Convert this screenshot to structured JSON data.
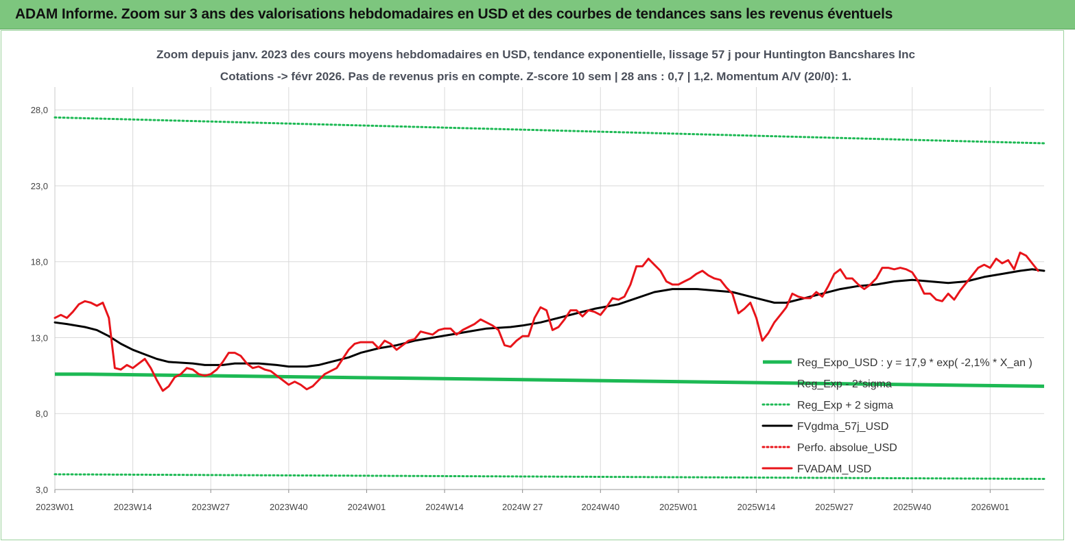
{
  "banner": {
    "title": "ADAM Informe. Zoom sur 3 ans des valorisations hebdomadaires en USD et des courbes de tendances sans les revenus éventuels"
  },
  "colors": {
    "banner_bg": "#7dc67e",
    "green": "#1db954",
    "black": "#000000",
    "red": "#e8141a",
    "grid": "#d9d9d9"
  },
  "chart_data": {
    "type": "line",
    "title": "Zoom depuis janv. 2023 des cours moyens hebdomadaires en USD, tendance exponentielle, lissage 57 j pour Huntington Bancshares Inc",
    "subtitle": "Cotations -> févr 2026. Pas de revenus pris en compte. Z-score 10 sem | 28 ans : 0,7 | 1,2. Momentum A/V (20/0): 1.",
    "xlabel": "",
    "ylabel": "",
    "x_range": [
      1,
      166
    ],
    "ylim": [
      3,
      29.5
    ],
    "y_ticks": [
      3.0,
      8.0,
      13.0,
      18.0,
      23.0,
      28.0
    ],
    "y_tick_labels": [
      "3,0",
      "8,0",
      "13,0",
      "18,0",
      "23,0",
      "28,0"
    ],
    "x_ticks": [
      {
        "label": "2023W01",
        "index": 1
      },
      {
        "label": "2023W14",
        "index": 14
      },
      {
        "label": "2023W27",
        "index": 27
      },
      {
        "label": "2023W40",
        "index": 40
      },
      {
        "label": "2024W01",
        "index": 53
      },
      {
        "label": "2024W14",
        "index": 66
      },
      {
        "label": "2024W 27",
        "index": 79
      },
      {
        "label": "2024W40",
        "index": 92
      },
      {
        "label": "2025W01",
        "index": 105
      },
      {
        "label": "2025W14",
        "index": 118
      },
      {
        "label": "2025W27",
        "index": 131
      },
      {
        "label": "2025W40",
        "index": 144
      },
      {
        "label": "2026W01",
        "index": 157
      }
    ],
    "grid": true,
    "legend_position": "bottom-right",
    "series": [
      {
        "name": "Reg_Expo_USD : y = 17,9 * exp( -2,1% *  X_an )",
        "color": "#1db954",
        "style": "solid",
        "points": [
          [
            1,
            10.6
          ],
          [
            6,
            10.6
          ],
          [
            166,
            9.8
          ]
        ]
      },
      {
        "name": "Reg_Exp - 2*sigma",
        "color": "#1db954",
        "style": "dotted",
        "points": [
          [
            1,
            4.0
          ],
          [
            166,
            3.7
          ]
        ]
      },
      {
        "name": "Reg_Exp + 2 sigma",
        "color": "#1db954",
        "style": "dotted",
        "points": [
          [
            1,
            27.5
          ],
          [
            166,
            25.8
          ]
        ]
      },
      {
        "name": "FVgdma_57j_USD",
        "color": "#000000",
        "style": "solid",
        "points": [
          [
            1,
            14.0
          ],
          [
            3,
            13.9
          ],
          [
            6,
            13.7
          ],
          [
            8,
            13.5
          ],
          [
            10,
            13.1
          ],
          [
            12,
            12.6
          ],
          [
            14,
            12.2
          ],
          [
            16,
            11.9
          ],
          [
            18,
            11.6
          ],
          [
            20,
            11.4
          ],
          [
            24,
            11.3
          ],
          [
            26,
            11.2
          ],
          [
            29,
            11.2
          ],
          [
            31,
            11.3
          ],
          [
            35,
            11.3
          ],
          [
            38,
            11.2
          ],
          [
            40,
            11.1
          ],
          [
            43,
            11.1
          ],
          [
            45,
            11.2
          ],
          [
            47,
            11.4
          ],
          [
            50,
            11.7
          ],
          [
            52,
            12.0
          ],
          [
            55,
            12.3
          ],
          [
            58,
            12.5
          ],
          [
            61,
            12.8
          ],
          [
            64,
            13.0
          ],
          [
            67,
            13.2
          ],
          [
            70,
            13.4
          ],
          [
            73,
            13.6
          ],
          [
            77,
            13.7
          ],
          [
            79,
            13.8
          ],
          [
            82,
            14.0
          ],
          [
            85,
            14.3
          ],
          [
            88,
            14.6
          ],
          [
            91,
            14.9
          ],
          [
            95,
            15.2
          ],
          [
            98,
            15.6
          ],
          [
            101,
            16.0
          ],
          [
            104,
            16.2
          ],
          [
            108,
            16.2
          ],
          [
            111,
            16.1
          ],
          [
            114,
            16.0
          ],
          [
            117,
            15.7
          ],
          [
            119,
            15.5
          ],
          [
            121,
            15.3
          ],
          [
            123,
            15.3
          ],
          [
            126,
            15.6
          ],
          [
            129,
            15.9
          ],
          [
            132,
            16.2
          ],
          [
            135,
            16.4
          ],
          [
            138,
            16.5
          ],
          [
            141,
            16.7
          ],
          [
            144,
            16.8
          ],
          [
            147,
            16.7
          ],
          [
            150,
            16.6
          ],
          [
            153,
            16.7
          ],
          [
            156,
            17.0
          ],
          [
            159,
            17.2
          ],
          [
            162,
            17.4
          ],
          [
            164,
            17.5
          ],
          [
            166,
            17.4
          ]
        ]
      },
      {
        "name": "Perfo. absolue_USD",
        "color": "#e8141a",
        "style": "dotted",
        "points": []
      },
      {
        "name": "FVADAM_USD",
        "color": "#e8141a",
        "style": "solid",
        "points": [
          [
            1,
            14.3
          ],
          [
            2,
            14.5
          ],
          [
            3,
            14.3
          ],
          [
            4,
            14.7
          ],
          [
            5,
            15.2
          ],
          [
            6,
            15.4
          ],
          [
            7,
            15.3
          ],
          [
            8,
            15.1
          ],
          [
            9,
            15.3
          ],
          [
            10,
            14.3
          ],
          [
            11,
            11.0
          ],
          [
            12,
            10.9
          ],
          [
            13,
            11.2
          ],
          [
            14,
            11.0
          ],
          [
            15,
            11.3
          ],
          [
            16,
            11.6
          ],
          [
            17,
            11.0
          ],
          [
            18,
            10.2
          ],
          [
            19,
            9.5
          ],
          [
            20,
            9.8
          ],
          [
            21,
            10.4
          ],
          [
            22,
            10.6
          ],
          [
            23,
            11.0
          ],
          [
            24,
            10.9
          ],
          [
            25,
            10.6
          ],
          [
            26,
            10.5
          ],
          [
            27,
            10.6
          ],
          [
            28,
            10.9
          ],
          [
            29,
            11.4
          ],
          [
            30,
            12.0
          ],
          [
            31,
            12.0
          ],
          [
            32,
            11.8
          ],
          [
            33,
            11.3
          ],
          [
            34,
            11.0
          ],
          [
            35,
            11.1
          ],
          [
            36,
            10.9
          ],
          [
            37,
            10.8
          ],
          [
            38,
            10.5
          ],
          [
            39,
            10.2
          ],
          [
            40,
            9.9
          ],
          [
            41,
            10.1
          ],
          [
            42,
            9.9
          ],
          [
            43,
            9.6
          ],
          [
            44,
            9.8
          ],
          [
            45,
            10.2
          ],
          [
            46,
            10.6
          ],
          [
            47,
            10.8
          ],
          [
            48,
            11.0
          ],
          [
            49,
            11.6
          ],
          [
            50,
            12.2
          ],
          [
            51,
            12.6
          ],
          [
            52,
            12.7
          ],
          [
            53,
            12.7
          ],
          [
            54,
            12.7
          ],
          [
            55,
            12.3
          ],
          [
            56,
            12.8
          ],
          [
            57,
            12.6
          ],
          [
            58,
            12.2
          ],
          [
            59,
            12.5
          ],
          [
            60,
            12.8
          ],
          [
            61,
            12.9
          ],
          [
            62,
            13.4
          ],
          [
            63,
            13.3
          ],
          [
            64,
            13.2
          ],
          [
            65,
            13.5
          ],
          [
            66,
            13.6
          ],
          [
            67,
            13.6
          ],
          [
            68,
            13.2
          ],
          [
            69,
            13.5
          ],
          [
            70,
            13.7
          ],
          [
            71,
            13.9
          ],
          [
            72,
            14.2
          ],
          [
            73,
            14.0
          ],
          [
            74,
            13.8
          ],
          [
            75,
            13.5
          ],
          [
            76,
            12.5
          ],
          [
            77,
            12.4
          ],
          [
            78,
            12.8
          ],
          [
            79,
            13.1
          ],
          [
            80,
            13.1
          ],
          [
            81,
            14.3
          ],
          [
            82,
            15.0
          ],
          [
            83,
            14.8
          ],
          [
            84,
            13.5
          ],
          [
            85,
            13.7
          ],
          [
            86,
            14.2
          ],
          [
            87,
            14.8
          ],
          [
            88,
            14.8
          ],
          [
            89,
            14.4
          ],
          [
            90,
            14.8
          ],
          [
            91,
            14.7
          ],
          [
            92,
            14.5
          ],
          [
            93,
            15.0
          ],
          [
            94,
            15.6
          ],
          [
            95,
            15.5
          ],
          [
            96,
            15.7
          ],
          [
            97,
            16.5
          ],
          [
            98,
            17.7
          ],
          [
            99,
            17.7
          ],
          [
            100,
            18.2
          ],
          [
            101,
            17.8
          ],
          [
            102,
            17.4
          ],
          [
            103,
            16.7
          ],
          [
            104,
            16.5
          ],
          [
            105,
            16.5
          ],
          [
            106,
            16.7
          ],
          [
            107,
            16.9
          ],
          [
            108,
            17.2
          ],
          [
            109,
            17.4
          ],
          [
            110,
            17.1
          ],
          [
            111,
            16.9
          ],
          [
            112,
            16.8
          ],
          [
            113,
            16.3
          ],
          [
            114,
            15.9
          ],
          [
            115,
            14.6
          ],
          [
            116,
            14.9
          ],
          [
            117,
            15.3
          ],
          [
            118,
            14.3
          ],
          [
            119,
            12.8
          ],
          [
            120,
            13.3
          ],
          [
            121,
            14.0
          ],
          [
            122,
            14.5
          ],
          [
            123,
            15.0
          ],
          [
            124,
            15.9
          ],
          [
            125,
            15.7
          ],
          [
            126,
            15.6
          ],
          [
            127,
            15.6
          ],
          [
            128,
            16.0
          ],
          [
            129,
            15.7
          ],
          [
            130,
            16.4
          ],
          [
            131,
            17.2
          ],
          [
            132,
            17.5
          ],
          [
            133,
            16.9
          ],
          [
            134,
            16.9
          ],
          [
            135,
            16.5
          ],
          [
            136,
            16.2
          ],
          [
            137,
            16.5
          ],
          [
            138,
            16.9
          ],
          [
            139,
            17.6
          ],
          [
            140,
            17.6
          ],
          [
            141,
            17.5
          ],
          [
            142,
            17.6
          ],
          [
            143,
            17.5
          ],
          [
            144,
            17.3
          ],
          [
            145,
            16.7
          ],
          [
            146,
            15.9
          ],
          [
            147,
            15.9
          ],
          [
            148,
            15.5
          ],
          [
            149,
            15.4
          ],
          [
            150,
            15.9
          ],
          [
            151,
            15.5
          ],
          [
            152,
            16.1
          ],
          [
            153,
            16.6
          ],
          [
            154,
            17.1
          ],
          [
            155,
            17.6
          ],
          [
            156,
            17.8
          ],
          [
            157,
            17.6
          ],
          [
            158,
            18.2
          ],
          [
            159,
            17.9
          ],
          [
            160,
            18.1
          ],
          [
            161,
            17.5
          ],
          [
            162,
            18.6
          ],
          [
            163,
            18.4
          ],
          [
            164,
            17.9
          ],
          [
            165,
            17.4
          ]
        ]
      }
    ]
  }
}
